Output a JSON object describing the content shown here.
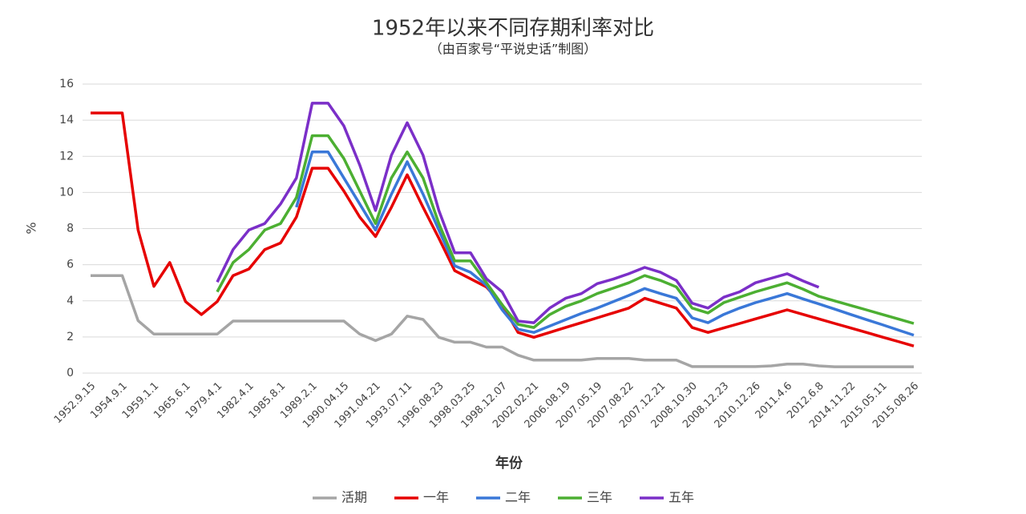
{
  "chart_data": {
    "type": "line",
    "title": "1952年以来不同存期利率对比",
    "subtitle": "（由百家号“平说史话”制图）",
    "x_label": "年份",
    "y_label": "%",
    "categories": [
      "1952.9.15",
      null,
      "1954.9.1",
      null,
      "1959.1.1",
      null,
      "1965.6.1",
      null,
      "1979.4.1",
      null,
      "1982.4.1",
      null,
      "1985.8.1",
      null,
      "1989.2.1",
      null,
      "1990.04.15",
      null,
      "1991.04.21",
      null,
      "1993.07.11",
      null,
      "1996.08.23",
      null,
      "1998.03.25",
      null,
      "1998.12.07",
      null,
      "2002.02.21",
      null,
      "2006.08.19",
      null,
      "2007.05.19",
      null,
      "2007.08.22",
      null,
      "2007.12.21",
      null,
      "2008.10.30",
      null,
      "2008.12.23",
      null,
      "2010.12.26",
      null,
      "2011.4.6",
      null,
      "2012.6.8",
      null,
      "2014.11.22",
      null,
      "2015.05.11",
      null,
      "2015.08.26"
    ],
    "ylim": [
      0,
      16
    ],
    "yticks": [
      0,
      2,
      4,
      6,
      8,
      10,
      12,
      14,
      16
    ],
    "grid": true,
    "legend": "bottom",
    "series": [
      {
        "name": "活期",
        "color": "#a5a5a5",
        "values": [
          5.4,
          5.4,
          5.4,
          2.9,
          2.16,
          2.16,
          2.16,
          2.16,
          2.16,
          2.88,
          2.88,
          2.88,
          2.88,
          2.88,
          2.88,
          2.88,
          2.88,
          2.16,
          1.8,
          2.16,
          3.15,
          2.97,
          1.98,
          1.71,
          1.71,
          1.44,
          1.44,
          0.99,
          0.72,
          0.72,
          0.72,
          0.72,
          0.81,
          0.81,
          0.81,
          0.72,
          0.72,
          0.72,
          0.36,
          0.36,
          0.36,
          0.36,
          0.36,
          0.4,
          0.5,
          0.5,
          0.4,
          0.35,
          0.35,
          0.35,
          0.35,
          0.35,
          0.35
        ]
      },
      {
        "name": "一年",
        "color": "#e60000",
        "values": [
          14.4,
          14.4,
          14.4,
          7.92,
          4.8,
          6.12,
          3.96,
          3.24,
          3.96,
          5.4,
          5.76,
          6.84,
          7.2,
          8.64,
          11.34,
          11.34,
          10.08,
          8.64,
          7.56,
          9.18,
          10.98,
          9.18,
          7.47,
          5.67,
          5.22,
          4.77,
          3.78,
          2.25,
          1.98,
          2.25,
          2.52,
          2.79,
          3.06,
          3.33,
          3.6,
          4.14,
          3.87,
          3.6,
          2.52,
          2.25,
          2.5,
          2.75,
          3.0,
          3.25,
          3.5,
          3.25,
          3.0,
          2.75,
          2.5,
          2.25,
          2.0,
          1.75,
          1.5
        ]
      },
      {
        "name": "二年",
        "color": "#3a78d8",
        "values": [
          null,
          null,
          null,
          null,
          null,
          null,
          null,
          null,
          null,
          null,
          null,
          null,
          null,
          9.18,
          12.24,
          12.24,
          10.8,
          9.36,
          7.92,
          9.9,
          11.7,
          9.9,
          7.92,
          5.94,
          5.58,
          4.86,
          3.5,
          2.43,
          2.25,
          2.6,
          2.95,
          3.3,
          3.6,
          3.95,
          4.3,
          4.68,
          4.4,
          4.14,
          3.06,
          2.79,
          3.25,
          3.6,
          3.9,
          4.15,
          4.4,
          4.11,
          3.83,
          3.54,
          3.25,
          2.96,
          2.68,
          2.39,
          2.1
        ]
      },
      {
        "name": "三年",
        "color": "#4caf32",
        "values": [
          null,
          null,
          null,
          null,
          null,
          null,
          null,
          null,
          4.5,
          6.12,
          6.84,
          7.92,
          8.28,
          9.72,
          13.14,
          13.14,
          11.88,
          10.08,
          8.28,
          10.8,
          12.24,
          10.8,
          8.28,
          6.21,
          6.21,
          5.0,
          3.78,
          2.7,
          2.52,
          3.24,
          3.69,
          4.0,
          4.4,
          4.7,
          5.0,
          5.4,
          5.13,
          4.77,
          3.6,
          3.33,
          3.9,
          4.2,
          4.5,
          4.75,
          5.0,
          4.65,
          4.25,
          4.0,
          3.75,
          3.5,
          3.25,
          3.0,
          2.75
        ]
      },
      {
        "name": "五年",
        "color": "#7b2fc8",
        "values": [
          null,
          null,
          null,
          null,
          null,
          null,
          null,
          null,
          5.04,
          6.84,
          7.92,
          8.28,
          9.36,
          10.8,
          14.94,
          14.94,
          13.68,
          11.52,
          9.0,
          12.06,
          13.86,
          12.06,
          9.0,
          6.66,
          6.66,
          5.22,
          4.5,
          2.88,
          2.79,
          3.6,
          4.14,
          4.4,
          4.95,
          5.2,
          5.5,
          5.85,
          5.58,
          5.13,
          3.87,
          3.6,
          4.2,
          4.5,
          5.0,
          5.25,
          5.5,
          5.1,
          4.75,
          null,
          null,
          null,
          null,
          null,
          null
        ]
      }
    ]
  }
}
